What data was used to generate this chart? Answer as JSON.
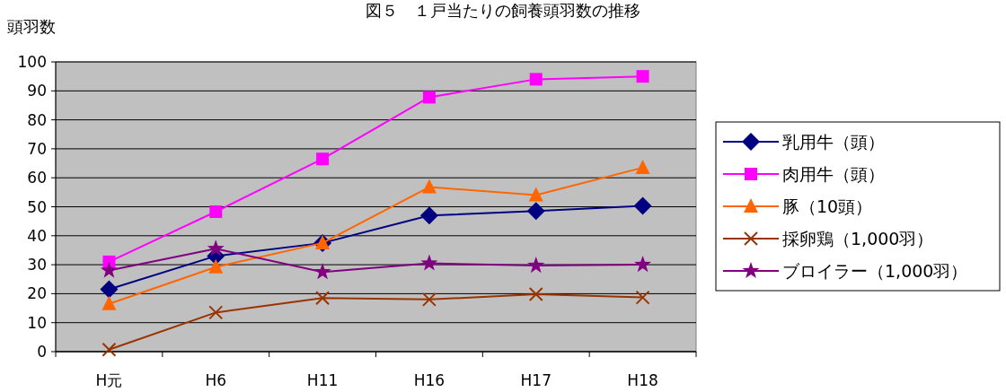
{
  "chart_data": {
    "type": "line",
    "title": "図５　１戸当たりの飼養頭羽数の推移",
    "ylabel": "頭羽数",
    "categories": [
      "H元",
      "H6",
      "H11",
      "H16",
      "H17",
      "H18"
    ],
    "ylim": [
      0,
      100
    ],
    "yticks": [
      0,
      10,
      20,
      30,
      40,
      50,
      60,
      70,
      80,
      90,
      100
    ],
    "grid": "y",
    "legend": "right",
    "line_style": "solid",
    "series": [
      {
        "name": "乳用牛（頭）",
        "color": "#000080",
        "marker": "diamond",
        "values": [
          21.5,
          33,
          37.5,
          47,
          48.5,
          50.3
        ]
      },
      {
        "name": "肉用牛（頭）",
        "color": "#ff00ff",
        "marker": "square",
        "values": [
          31,
          48.3,
          66.5,
          87.8,
          94,
          95
        ]
      },
      {
        "name": "豚（10頭）",
        "color": "#ff6600",
        "marker": "triangle",
        "values": [
          16.5,
          29.2,
          37.5,
          56.8,
          54,
          63.5
        ]
      },
      {
        "name": "採卵鶏（1,000羽）",
        "color": "#993300",
        "marker": "cross",
        "values": [
          0.7,
          13.5,
          18.5,
          18,
          19.8,
          18.7
        ]
      },
      {
        "name": "ブロイラー（1,000羽）",
        "color": "#800080",
        "marker": "star",
        "values": [
          28,
          35.5,
          27.5,
          30.5,
          29.7,
          30
        ]
      }
    ]
  }
}
